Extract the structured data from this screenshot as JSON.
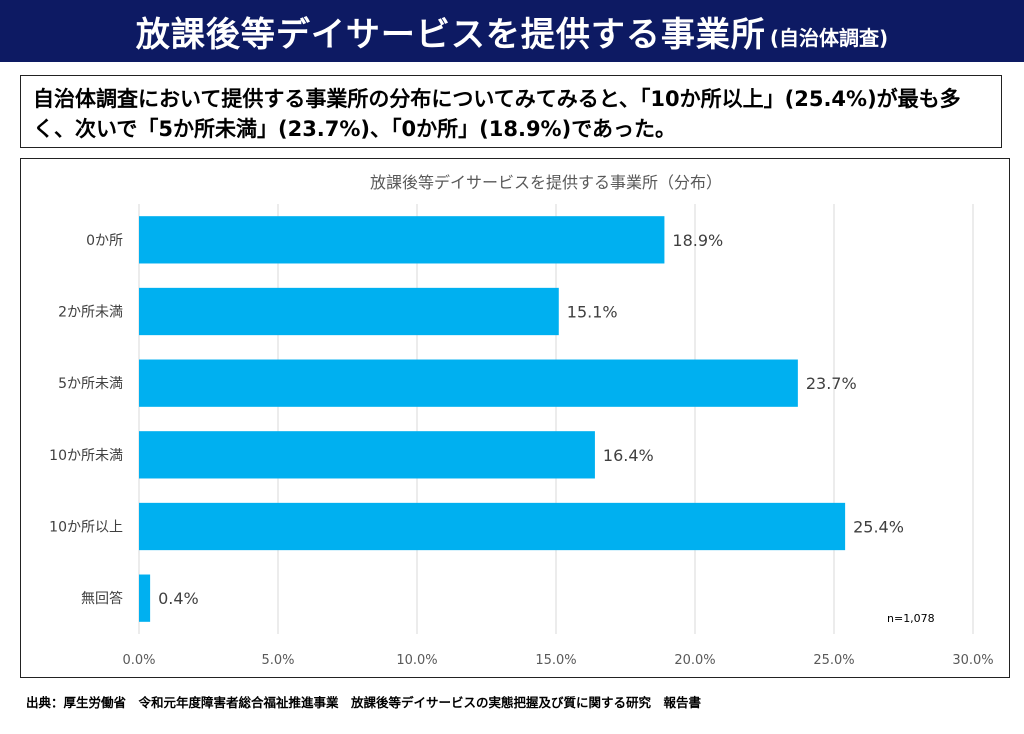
{
  "header": {
    "title": "放課後等デイサービスを提供する事業所",
    "subtitle": "(自治体調査)"
  },
  "summary": "自治体調査において提供する事業所の分布についてみてみると、「10か所以上」(25.4%)が最も多く、次いで「5か所未満」(23.7%)、「0か所」(18.9%)であった。",
  "footer": {
    "source": "出典：厚生労働省　令和元年度障害者総合福祉推進事業　放課後等デイサービスの実態把握及び質に関する研究　報告書"
  },
  "colors": {
    "header_bg": "#0d1a63",
    "bar": "#00b0f0",
    "grid": "#d9d9d9"
  },
  "chart_data": {
    "type": "bar",
    "orientation": "horizontal",
    "title": "放課後等デイサービスを提供する事業所（分布）",
    "categories": [
      "0か所",
      "2か所未満",
      "5か所未満",
      "10か所未満",
      "10か所以上",
      "無回答"
    ],
    "values": [
      18.9,
      15.1,
      23.7,
      16.4,
      25.4,
      0.4
    ],
    "value_labels": [
      "18.9%",
      "15.1%",
      "23.7%",
      "16.4%",
      "25.4%",
      "0.4%"
    ],
    "xlim": [
      0,
      30
    ],
    "xticks": [
      "0.0%",
      "5.0%",
      "10.0%",
      "15.0%",
      "20.0%",
      "25.0%",
      "30.0%"
    ],
    "grid": true,
    "note": "n=1,078"
  }
}
